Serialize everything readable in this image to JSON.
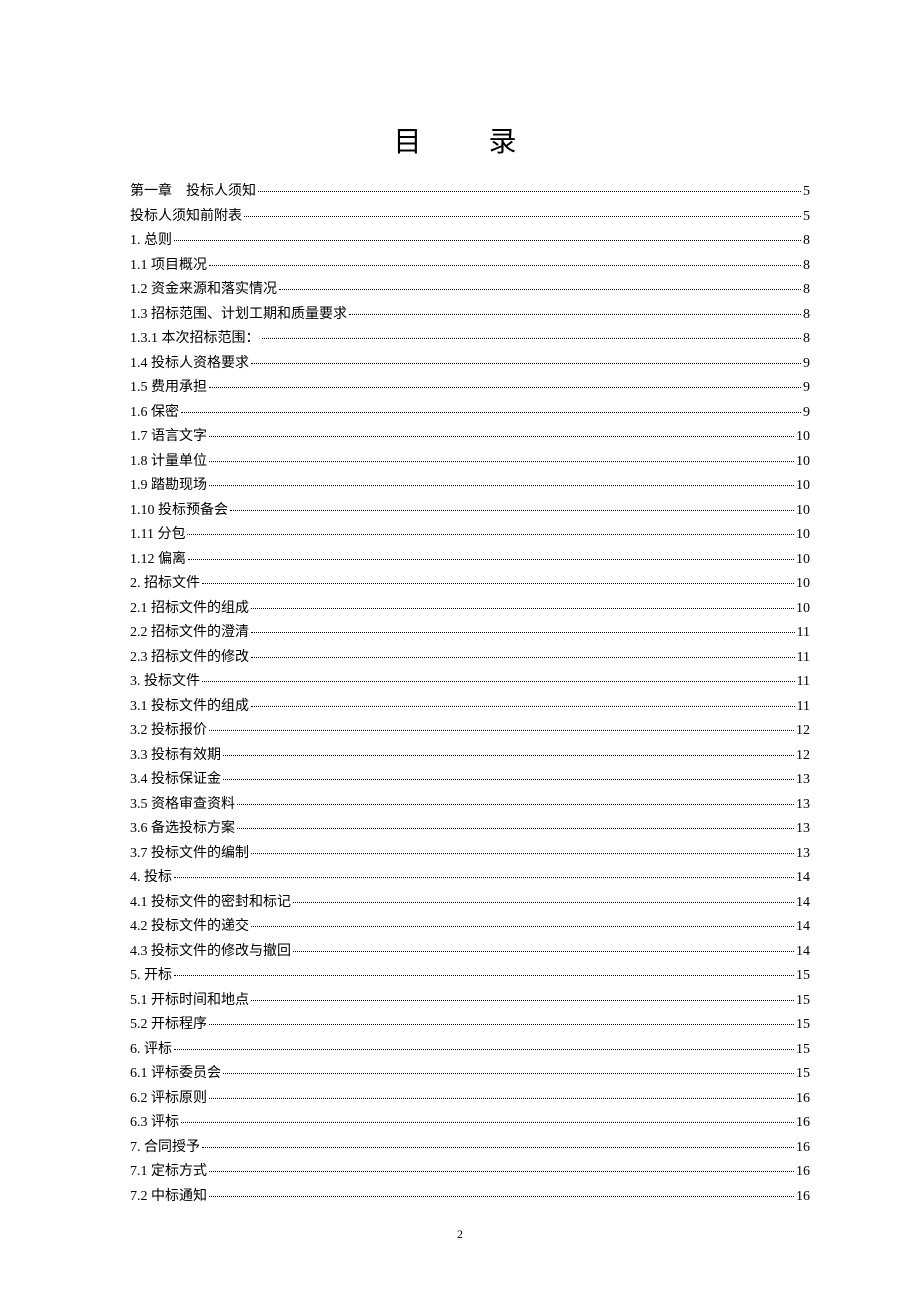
{
  "title": "目 录",
  "page_number": "2",
  "colors": {
    "background": "#ffffff",
    "text": "#000000",
    "dots": "#000000"
  },
  "typography": {
    "title_fontsize": 28,
    "entry_fontsize": 14,
    "line_height": 24.5,
    "font_family": "SimSun"
  },
  "entries": [
    {
      "label": "第一章　投标人须知",
      "page": "5"
    },
    {
      "label": "投标人须知前附表",
      "page": "5"
    },
    {
      "label": "1. 总则",
      "page": "8"
    },
    {
      "label": "1.1 项目概况",
      "page": "8"
    },
    {
      "label": "1.2 资金来源和落实情况",
      "page": "8"
    },
    {
      "label": "1.3 招标范围、计划工期和质量要求",
      "page": "8"
    },
    {
      "label": "1.3.1 本次招标范围：",
      "page": "8"
    },
    {
      "label": "1.4 投标人资格要求",
      "page": "9"
    },
    {
      "label": "1.5 费用承担",
      "page": "9"
    },
    {
      "label": "1.6 保密",
      "page": "9"
    },
    {
      "label": "1.7 语言文字",
      "page": "10"
    },
    {
      "label": "1.8 计量单位",
      "page": "10"
    },
    {
      "label": "1.9 踏勘现场",
      "page": "10"
    },
    {
      "label": "1.10 投标预备会",
      "page": "10"
    },
    {
      "label": "1.11 分包",
      "page": "10"
    },
    {
      "label": "1.12 偏离",
      "page": "10"
    },
    {
      "label": "2. 招标文件",
      "page": "10"
    },
    {
      "label": "2.1 招标文件的组成",
      "page": "10"
    },
    {
      "label": "2.2 招标文件的澄清",
      "page": "11"
    },
    {
      "label": "2.3 招标文件的修改",
      "page": "11"
    },
    {
      "label": "3. 投标文件",
      "page": "11"
    },
    {
      "label": "3.1 投标文件的组成",
      "page": "11"
    },
    {
      "label": "3.2 投标报价",
      "page": "12"
    },
    {
      "label": "3.3 投标有效期",
      "page": "12"
    },
    {
      "label": "3.4 投标保证金",
      "page": "13"
    },
    {
      "label": "3.5 资格审查资料",
      "page": "13"
    },
    {
      "label": "3.6 备选投标方案",
      "page": "13"
    },
    {
      "label": "3.7 投标文件的编制",
      "page": "13"
    },
    {
      "label": "4. 投标",
      "page": "14"
    },
    {
      "label": "4.1 投标文件的密封和标记",
      "page": "14"
    },
    {
      "label": "4.2 投标文件的递交",
      "page": "14"
    },
    {
      "label": "4.3 投标文件的修改与撤回",
      "page": "14"
    },
    {
      "label": "5. 开标",
      "page": "15"
    },
    {
      "label": "5.1 开标时间和地点",
      "page": "15"
    },
    {
      "label": "5.2 开标程序",
      "page": "15"
    },
    {
      "label": "6. 评标",
      "page": "15"
    },
    {
      "label": "6.1 评标委员会",
      "page": "15"
    },
    {
      "label": "6.2 评标原则",
      "page": "16"
    },
    {
      "label": "6.3 评标",
      "page": "16"
    },
    {
      "label": "7. 合同授予",
      "page": "16"
    },
    {
      "label": "7.1 定标方式",
      "page": "16"
    },
    {
      "label": "7.2 中标通知",
      "page": "16"
    }
  ]
}
